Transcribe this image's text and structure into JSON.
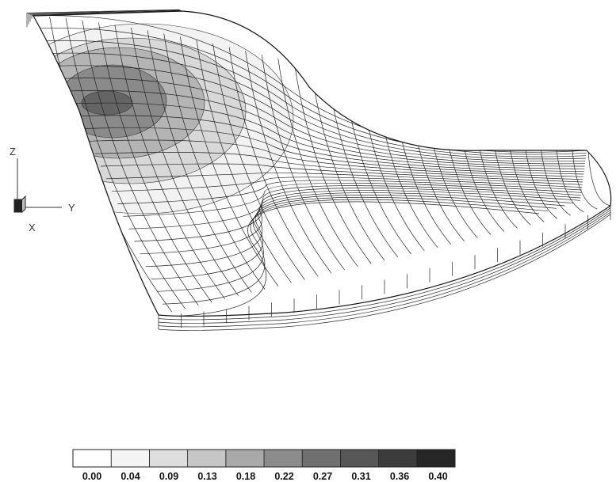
{
  "triad": {
    "z_label": "Z",
    "y_label": "Y",
    "x_label": "X"
  },
  "legend": {
    "ticks": [
      "0.00",
      "0.04",
      "0.09",
      "0.13",
      "0.18",
      "0.22",
      "0.27",
      "0.31",
      "0.36",
      "0.40"
    ],
    "colors": [
      "#ffffff",
      "#f4f4f4",
      "#dedede",
      "#c6c6c6",
      "#a9a9a9",
      "#8c8c8c",
      "#707070",
      "#575757",
      "#3c3c3c",
      "#262626"
    ]
  },
  "contours": {
    "bands": [
      "#f2f2f2",
      "#d8d8d8",
      "#b4b4b4",
      "#8a8a8a",
      "#646464"
    ]
  }
}
